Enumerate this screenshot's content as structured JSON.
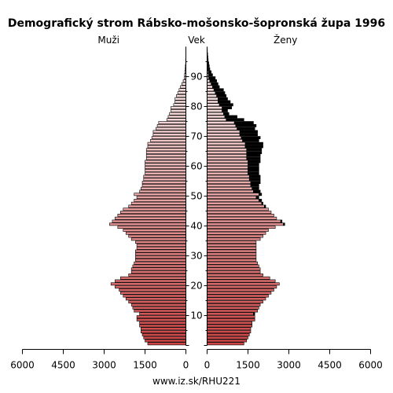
{
  "chart_data": {
    "type": "bar",
    "title": "Demografický strom Rábsko-mošonsko-šopronská župa 1996",
    "left_label": "Muži",
    "center_label": "Vek",
    "right_label": "Ženy",
    "footer": "www.iz.sk/RHU221",
    "x_max": 6000,
    "x_ticks": [
      6000,
      4500,
      3000,
      1500,
      0
    ],
    "x_tick_labels": [
      "6000",
      "4500",
      "3000",
      "1500",
      "0"
    ],
    "age_ticks": [
      10,
      20,
      30,
      40,
      50,
      60,
      70,
      80,
      90
    ],
    "age_tick_labels": [
      "10",
      "20",
      "30",
      "40",
      "50",
      "60",
      "70",
      "80",
      "90"
    ],
    "colors": {
      "male_young": "#cc4444",
      "male_old": "#f4dcdc",
      "female_young": "#cc4444",
      "female_old": "#f4dcdc",
      "female_excess": "#000000"
    },
    "ages": [
      0,
      1,
      2,
      3,
      4,
      5,
      6,
      7,
      8,
      9,
      10,
      11,
      12,
      13,
      14,
      15,
      16,
      17,
      18,
      19,
      20,
      21,
      22,
      23,
      24,
      25,
      26,
      27,
      28,
      29,
      30,
      31,
      32,
      33,
      34,
      35,
      36,
      37,
      38,
      39,
      40,
      41,
      42,
      43,
      44,
      45,
      46,
      47,
      48,
      49,
      50,
      51,
      52,
      53,
      54,
      55,
      56,
      57,
      58,
      59,
      60,
      61,
      62,
      63,
      64,
      65,
      66,
      67,
      68,
      69,
      70,
      71,
      72,
      73,
      74,
      75,
      76,
      77,
      78,
      79,
      80,
      81,
      82,
      83,
      84,
      85,
      86,
      87,
      88,
      89,
      90,
      91,
      92,
      93,
      94,
      95,
      96,
      97,
      98,
      99
    ],
    "series": [
      {
        "name": "Muži",
        "values": [
          1400,
          1500,
          1550,
          1600,
          1650,
          1650,
          1700,
          1700,
          1800,
          1800,
          1700,
          1900,
          1950,
          2000,
          2100,
          2200,
          2300,
          2400,
          2450,
          2600,
          2750,
          2600,
          2400,
          2100,
          2000,
          2000,
          1950,
          1900,
          1850,
          1850,
          1850,
          1850,
          1800,
          1800,
          1850,
          2000,
          2100,
          2200,
          2300,
          2500,
          2800,
          2700,
          2600,
          2500,
          2400,
          2300,
          2100,
          2000,
          1900,
          1800,
          1900,
          1700,
          1650,
          1600,
          1600,
          1550,
          1550,
          1500,
          1500,
          1500,
          1500,
          1500,
          1450,
          1450,
          1450,
          1450,
          1400,
          1400,
          1300,
          1250,
          1200,
          1200,
          1100,
          1050,
          1000,
          700,
          650,
          600,
          550,
          550,
          450,
          400,
          400,
          350,
          300,
          250,
          200,
          150,
          100,
          60,
          50,
          40,
          30,
          20,
          10,
          10,
          5,
          5,
          5,
          5
        ]
      },
      {
        "name": "Ženy",
        "values": [
          1350,
          1450,
          1500,
          1550,
          1600,
          1600,
          1650,
          1650,
          1750,
          1750,
          1750,
          1850,
          1900,
          1950,
          2050,
          2150,
          2250,
          2350,
          2450,
          2550,
          2650,
          2500,
          2300,
          2050,
          1950,
          1950,
          1900,
          1850,
          1800,
          1800,
          1800,
          1800,
          1800,
          1800,
          1800,
          1950,
          2050,
          2150,
          2250,
          2500,
          2850,
          2750,
          2550,
          2450,
          2350,
          2250,
          2150,
          2050,
          2000,
          1900,
          2000,
          1950,
          1900,
          1900,
          1950,
          1950,
          1950,
          1900,
          1900,
          1900,
          1900,
          1950,
          1950,
          1950,
          2000,
          2000,
          2050,
          2050,
          1900,
          1950,
          1850,
          1850,
          1750,
          1800,
          1700,
          1350,
          1100,
          800,
          750,
          900,
          950,
          850,
          750,
          700,
          650,
          600,
          450,
          400,
          350,
          300,
          200,
          150,
          100,
          80,
          60,
          40,
          30,
          20,
          10,
          5
        ]
      }
    ],
    "male_age_cutoff_rows": 20
  }
}
